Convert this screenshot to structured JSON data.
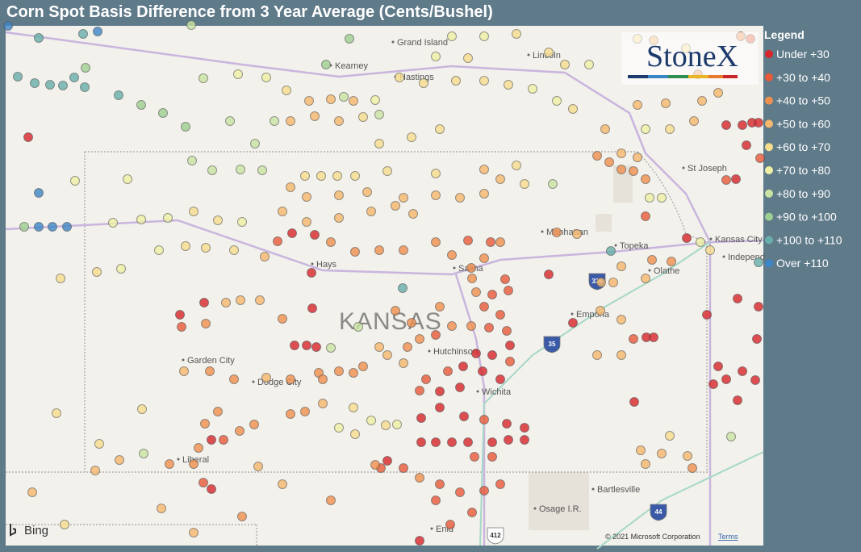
{
  "title": "Corn Spot Basis Difference from 3 Year Average (Cents/Bushel)",
  "legend": {
    "title": "Legend",
    "items": [
      {
        "label": "Under +30",
        "color": "#d7262b"
      },
      {
        "label": "+30 to +40",
        "color": "#e85a3a"
      },
      {
        "label": "+40 to +50",
        "color": "#f0904e"
      },
      {
        "label": "+50 to +60",
        "color": "#f6b86d"
      },
      {
        "label": "+60 to +70",
        "color": "#f8dd8e"
      },
      {
        "label": "+70 to +80",
        "color": "#eef0a4"
      },
      {
        "label": "+80 to +90",
        "color": "#c9e3a2"
      },
      {
        "label": "+90 to +100",
        "color": "#9dcf90"
      },
      {
        "label": "+100 to +110",
        "color": "#67afaa"
      },
      {
        "label": "Over +110",
        "color": "#3d86c6"
      }
    ]
  },
  "logo": "StoneX",
  "map": {
    "places": [
      "Grand Island",
      "Kearney",
      "Hastings",
      "Lincoln",
      "St Joseph",
      "Manhattan",
      "Topeka",
      "Kansas City",
      "Independ",
      "Olathe",
      "Hays",
      "Salina",
      "Emporia",
      "Hutchinson",
      "Garden City",
      "Dodge City",
      "Wichita",
      "Liberal",
      "Bartlesville",
      "Osage I.R.",
      "Enid"
    ],
    "state_label": "KANSAS",
    "shields": [
      "335",
      "35",
      "44",
      "412"
    ],
    "provider": "Bing",
    "copyright": "© 2021 Microsoft Corporation",
    "terms": "Terms"
  }
}
